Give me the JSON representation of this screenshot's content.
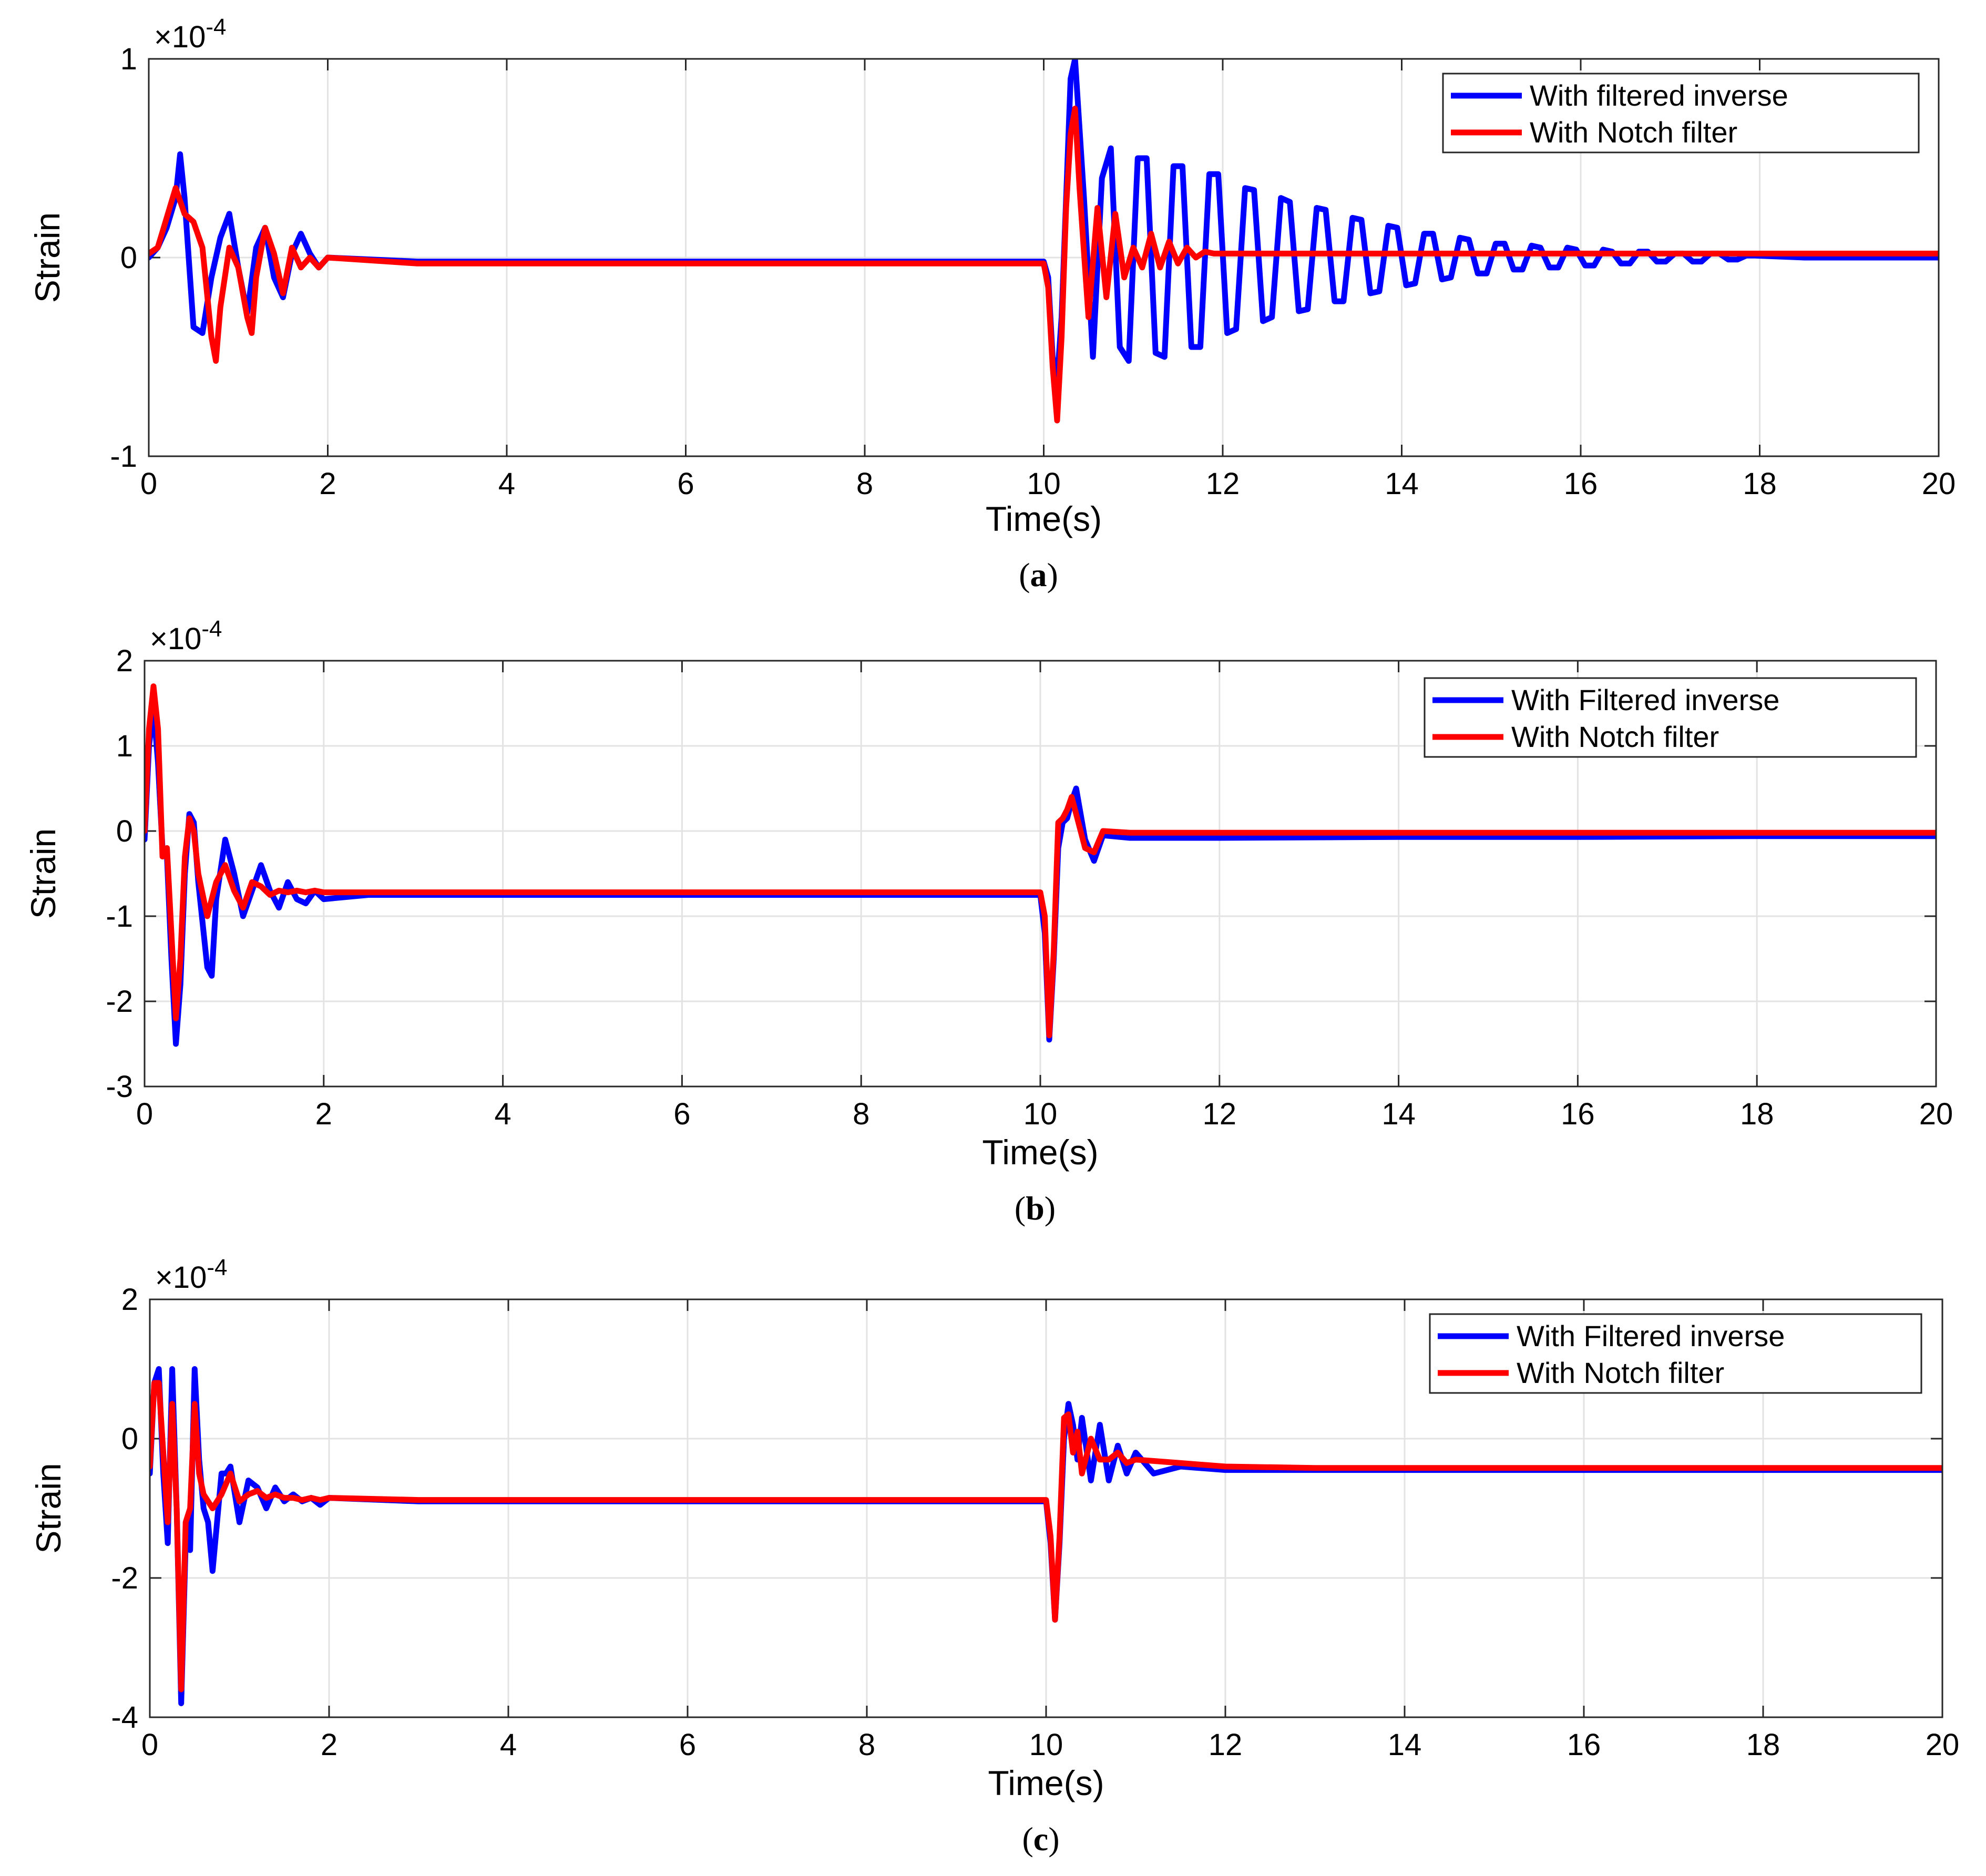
{
  "figure": {
    "panels": [
      {
        "caption_letter": "a",
        "ylabel": "Strain",
        "xlabel": "Time(s)",
        "exponent": "-4",
        "legend": [
          "With filtered inverse",
          "With Notch filter"
        ]
      },
      {
        "caption_letter": "b",
        "ylabel": "Strain",
        "xlabel": "Time(s)",
        "exponent": "-4",
        "legend": [
          "With Filtered inverse",
          "With Notch filter"
        ]
      },
      {
        "caption_letter": "c",
        "ylabel": "Strain",
        "xlabel": "Time(s)",
        "exponent": "-4",
        "legend": [
          "With Filtered inverse",
          "With Notch filter"
        ]
      }
    ]
  },
  "chart_data": [
    {
      "type": "line",
      "title": "",
      "xlabel": "Time(s)",
      "ylabel": "Strain",
      "y_scale_factor": "×10^-4",
      "xlim": [
        0,
        20
      ],
      "ylim": [
        -1,
        1
      ],
      "xticks": [
        0,
        2,
        4,
        6,
        8,
        10,
        12,
        14,
        16,
        18,
        20
      ],
      "yticks": [
        -1,
        0,
        1
      ],
      "grid": true,
      "legend_position": "top-right",
      "series": [
        {
          "name": "With filtered inverse",
          "color": "#0000ff",
          "x": [
            0,
            0.1,
            0.2,
            0.3,
            0.35,
            0.4,
            0.5,
            0.6,
            0.7,
            0.8,
            0.9,
            1.0,
            1.1,
            1.2,
            1.3,
            1.4,
            1.5,
            1.6,
            1.7,
            1.8,
            1.9,
            2.0,
            3.0,
            5.0,
            8.0,
            10.0,
            10.05,
            10.1,
            10.15,
            10.2,
            10.25,
            10.3,
            10.35,
            10.45,
            10.55,
            10.65,
            10.75,
            10.85,
            10.95,
            11.05,
            11.15,
            11.25,
            11.35,
            11.45,
            11.55,
            11.65,
            11.75,
            11.85,
            11.95,
            12.05,
            12.15,
            12.25,
            12.35,
            12.45,
            12.55,
            12.65,
            12.75,
            12.85,
            12.95,
            13.05,
            13.15,
            13.25,
            13.35,
            13.45,
            13.55,
            13.65,
            13.75,
            13.85,
            13.95,
            14.05,
            14.15,
            14.25,
            14.35,
            14.45,
            14.55,
            14.65,
            14.75,
            14.85,
            14.95,
            15.05,
            15.15,
            15.25,
            15.35,
            15.45,
            15.55,
            15.65,
            15.75,
            15.85,
            15.95,
            16.05,
            16.15,
            16.25,
            16.35,
            16.45,
            16.55,
            16.65,
            16.75,
            16.85,
            16.95,
            17.05,
            17.15,
            17.25,
            17.35,
            17.45,
            17.55,
            17.65,
            17.75,
            17.85,
            17.95,
            18.5,
            19.0,
            19.5,
            20.0
          ],
          "y": [
            0,
            0.05,
            0.15,
            0.3,
            0.52,
            0.3,
            -0.35,
            -0.38,
            -0.1,
            0.1,
            0.22,
            -0.05,
            -0.28,
            0.05,
            0.15,
            -0.1,
            -0.2,
            0.02,
            0.12,
            0.02,
            -0.05,
            0.0,
            -0.02,
            -0.02,
            -0.02,
            -0.02,
            -0.1,
            -0.5,
            -0.62,
            -0.3,
            0.3,
            0.9,
            1.0,
            0.3,
            -0.5,
            0.4,
            0.55,
            -0.45,
            -0.52,
            0.5,
            0.5,
            -0.48,
            -0.5,
            0.46,
            0.46,
            -0.45,
            -0.45,
            0.42,
            0.42,
            -0.38,
            -0.36,
            0.35,
            0.34,
            -0.32,
            -0.3,
            0.3,
            0.28,
            -0.27,
            -0.26,
            0.25,
            0.24,
            -0.22,
            -0.22,
            0.2,
            0.19,
            -0.18,
            -0.17,
            0.16,
            0.15,
            -0.14,
            -0.13,
            0.12,
            0.12,
            -0.11,
            -0.1,
            0.1,
            0.09,
            -0.08,
            -0.08,
            0.07,
            0.07,
            -0.06,
            -0.06,
            0.06,
            0.05,
            -0.05,
            -0.05,
            0.05,
            0.04,
            -0.04,
            -0.04,
            0.04,
            0.03,
            -0.03,
            -0.03,
            0.03,
            0.03,
            -0.02,
            -0.02,
            0.02,
            0.02,
            -0.02,
            -0.02,
            0.02,
            0.02,
            -0.01,
            -0.01,
            0.01,
            0.01,
            0.0,
            0.0,
            0.0,
            0.0
          ]
        },
        {
          "name": "With Notch filter",
          "color": "#ff0000",
          "x": [
            0,
            0.1,
            0.2,
            0.3,
            0.4,
            0.5,
            0.6,
            0.7,
            0.75,
            0.8,
            0.9,
            1.0,
            1.1,
            1.15,
            1.2,
            1.3,
            1.4,
            1.5,
            1.6,
            1.7,
            1.8,
            1.9,
            2.0,
            3.0,
            5.0,
            8.0,
            10.0,
            10.05,
            10.1,
            10.15,
            10.2,
            10.25,
            10.3,
            10.35,
            10.4,
            10.5,
            10.6,
            10.7,
            10.8,
            10.9,
            11.0,
            11.1,
            11.2,
            11.3,
            11.4,
            11.5,
            11.6,
            11.7,
            11.8,
            11.9,
            12.0,
            12.5,
            13.0,
            14.0,
            16.0,
            18.0,
            20.0
          ],
          "y": [
            0.02,
            0.05,
            0.2,
            0.35,
            0.22,
            0.18,
            0.05,
            -0.4,
            -0.52,
            -0.25,
            0.05,
            -0.05,
            -0.3,
            -0.38,
            -0.1,
            0.15,
            0.02,
            -0.18,
            0.05,
            -0.05,
            0.0,
            -0.05,
            0.0,
            -0.03,
            -0.03,
            -0.03,
            -0.03,
            -0.15,
            -0.55,
            -0.82,
            -0.4,
            0.25,
            0.62,
            0.75,
            0.35,
            -0.3,
            0.25,
            -0.2,
            0.22,
            -0.1,
            0.05,
            -0.05,
            0.12,
            -0.05,
            0.08,
            -0.03,
            0.05,
            0.0,
            0.03,
            0.02,
            0.02,
            0.02,
            0.02,
            0.02,
            0.02,
            0.02,
            0.02
          ]
        }
      ]
    },
    {
      "type": "line",
      "title": "",
      "xlabel": "Time(s)",
      "ylabel": "Strain",
      "y_scale_factor": "×10^-4",
      "xlim": [
        0,
        20
      ],
      "ylim": [
        -3,
        2
      ],
      "xticks": [
        0,
        2,
        4,
        6,
        8,
        10,
        12,
        14,
        16,
        18,
        20
      ],
      "yticks": [
        -3,
        -2,
        -1,
        0,
        1,
        2
      ],
      "grid": true,
      "legend_position": "top-right",
      "series": [
        {
          "name": "With Filtered inverse",
          "color": "#0000ff",
          "x": [
            0,
            0.05,
            0.1,
            0.15,
            0.2,
            0.25,
            0.3,
            0.35,
            0.4,
            0.45,
            0.5,
            0.55,
            0.6,
            0.7,
            0.75,
            0.8,
            0.9,
            1.0,
            1.1,
            1.2,
            1.3,
            1.4,
            1.5,
            1.6,
            1.7,
            1.8,
            1.9,
            2.0,
            2.5,
            3.0,
            5.0,
            8.0,
            10.0,
            10.05,
            10.1,
            10.15,
            10.2,
            10.25,
            10.3,
            10.35,
            10.4,
            10.5,
            10.6,
            10.7,
            11.0,
            12.0,
            14.0,
            16.0,
            18.0,
            20.0
          ],
          "y": [
            -0.1,
            1.0,
            1.45,
            0.8,
            -0.2,
            -0.3,
            -1.5,
            -2.5,
            -1.8,
            -0.5,
            0.2,
            0.1,
            -0.6,
            -1.6,
            -1.7,
            -0.8,
            -0.1,
            -0.5,
            -1.0,
            -0.7,
            -0.4,
            -0.7,
            -0.9,
            -0.6,
            -0.8,
            -0.85,
            -0.7,
            -0.8,
            -0.75,
            -0.75,
            -0.75,
            -0.75,
            -0.75,
            -1.2,
            -2.45,
            -1.5,
            -0.2,
            0.1,
            0.15,
            0.35,
            0.5,
            -0.1,
            -0.35,
            -0.05,
            -0.08,
            -0.08,
            -0.07,
            -0.07,
            -0.06,
            -0.06
          ]
        },
        {
          "name": "With Notch filter",
          "color": "#ff0000",
          "x": [
            0,
            0.05,
            0.1,
            0.15,
            0.2,
            0.25,
            0.3,
            0.35,
            0.4,
            0.45,
            0.5,
            0.55,
            0.6,
            0.7,
            0.8,
            0.9,
            1.0,
            1.1,
            1.2,
            1.3,
            1.4,
            1.5,
            1.6,
            1.7,
            1.8,
            1.9,
            2.0,
            3.0,
            5.0,
            8.0,
            10.0,
            10.05,
            10.1,
            10.15,
            10.2,
            10.25,
            10.3,
            10.35,
            10.4,
            10.5,
            10.6,
            10.7,
            11.0,
            12.0,
            14.0,
            16.0,
            18.0,
            20.0
          ],
          "y": [
            0.0,
            1.2,
            1.7,
            1.2,
            -0.3,
            -0.2,
            -1.2,
            -2.2,
            -1.5,
            -0.3,
            0.15,
            0.0,
            -0.5,
            -1.0,
            -0.6,
            -0.4,
            -0.7,
            -0.9,
            -0.6,
            -0.65,
            -0.75,
            -0.7,
            -0.72,
            -0.7,
            -0.72,
            -0.7,
            -0.72,
            -0.72,
            -0.72,
            -0.72,
            -0.72,
            -1.0,
            -2.4,
            -1.4,
            0.1,
            0.15,
            0.25,
            0.4,
            0.2,
            -0.2,
            -0.25,
            0.0,
            -0.02,
            -0.02,
            -0.02,
            -0.02,
            -0.02,
            -0.02
          ]
        }
      ]
    },
    {
      "type": "line",
      "title": "",
      "xlabel": "Time(s)",
      "ylabel": "Strain",
      "y_scale_factor": "×10^-4",
      "xlim": [
        0,
        20
      ],
      "ylim": [
        -4,
        2
      ],
      "xticks": [
        0,
        2,
        4,
        6,
        8,
        10,
        12,
        14,
        16,
        18,
        20
      ],
      "yticks": [
        -4,
        -2,
        0,
        2
      ],
      "grid": true,
      "legend_position": "top-right",
      "series": [
        {
          "name": "With Filtered inverse",
          "color": "#0000ff",
          "x": [
            0,
            0.05,
            0.1,
            0.15,
            0.2,
            0.25,
            0.3,
            0.35,
            0.4,
            0.45,
            0.5,
            0.55,
            0.6,
            0.65,
            0.7,
            0.75,
            0.8,
            0.85,
            0.9,
            1.0,
            1.1,
            1.2,
            1.3,
            1.4,
            1.5,
            1.6,
            1.7,
            1.8,
            1.9,
            2.0,
            3.0,
            5.0,
            8.0,
            10.0,
            10.05,
            10.1,
            10.15,
            10.2,
            10.25,
            10.3,
            10.35,
            10.4,
            10.5,
            10.6,
            10.7,
            10.8,
            10.9,
            11.0,
            11.2,
            11.5,
            12.0,
            13.0,
            14.0,
            16.0,
            18.0,
            20.0
          ],
          "y": [
            -0.5,
            0.8,
            1.0,
            -0.5,
            -1.5,
            1.0,
            -1.0,
            -3.8,
            -1.5,
            -1.6,
            1.0,
            -0.3,
            -1.0,
            -1.2,
            -1.9,
            -1.2,
            -0.5,
            -0.5,
            -0.4,
            -1.2,
            -0.6,
            -0.7,
            -1.0,
            -0.7,
            -0.9,
            -0.8,
            -0.9,
            -0.85,
            -0.95,
            -0.85,
            -0.9,
            -0.9,
            -0.9,
            -0.9,
            -1.5,
            -2.6,
            -1.5,
            0.0,
            0.5,
            0.2,
            -0.3,
            0.3,
            -0.6,
            0.2,
            -0.6,
            -0.1,
            -0.5,
            -0.2,
            -0.5,
            -0.4,
            -0.45,
            -0.45,
            -0.45,
            -0.45,
            -0.45,
            -0.45
          ]
        },
        {
          "name": "With Notch filter",
          "color": "#ff0000",
          "x": [
            0,
            0.05,
            0.1,
            0.15,
            0.2,
            0.25,
            0.3,
            0.35,
            0.4,
            0.45,
            0.5,
            0.55,
            0.6,
            0.7,
            0.8,
            0.9,
            1.0,
            1.1,
            1.2,
            1.3,
            1.4,
            1.5,
            1.6,
            1.7,
            1.8,
            1.9,
            2.0,
            3.0,
            5.0,
            8.0,
            10.0,
            10.05,
            10.1,
            10.15,
            10.2,
            10.25,
            10.3,
            10.35,
            10.4,
            10.5,
            10.6,
            10.7,
            10.8,
            10.9,
            11.0,
            11.5,
            12.0,
            13.0,
            14.0,
            16.0,
            18.0,
            20.0
          ],
          "y": [
            -0.4,
            0.8,
            0.8,
            -0.2,
            -1.2,
            0.5,
            -1.0,
            -3.6,
            -1.2,
            -1.0,
            0.5,
            -0.5,
            -0.8,
            -1.0,
            -0.8,
            -0.5,
            -0.9,
            -0.8,
            -0.75,
            -0.85,
            -0.8,
            -0.85,
            -0.85,
            -0.88,
            -0.85,
            -0.88,
            -0.85,
            -0.88,
            -0.88,
            -0.88,
            -0.88,
            -1.4,
            -2.6,
            -1.4,
            0.3,
            0.35,
            -0.2,
            0.1,
            -0.5,
            0.0,
            -0.3,
            -0.3,
            -0.2,
            -0.35,
            -0.3,
            -0.35,
            -0.4,
            -0.42,
            -0.42,
            -0.42,
            -0.42,
            -0.42
          ]
        }
      ]
    }
  ]
}
